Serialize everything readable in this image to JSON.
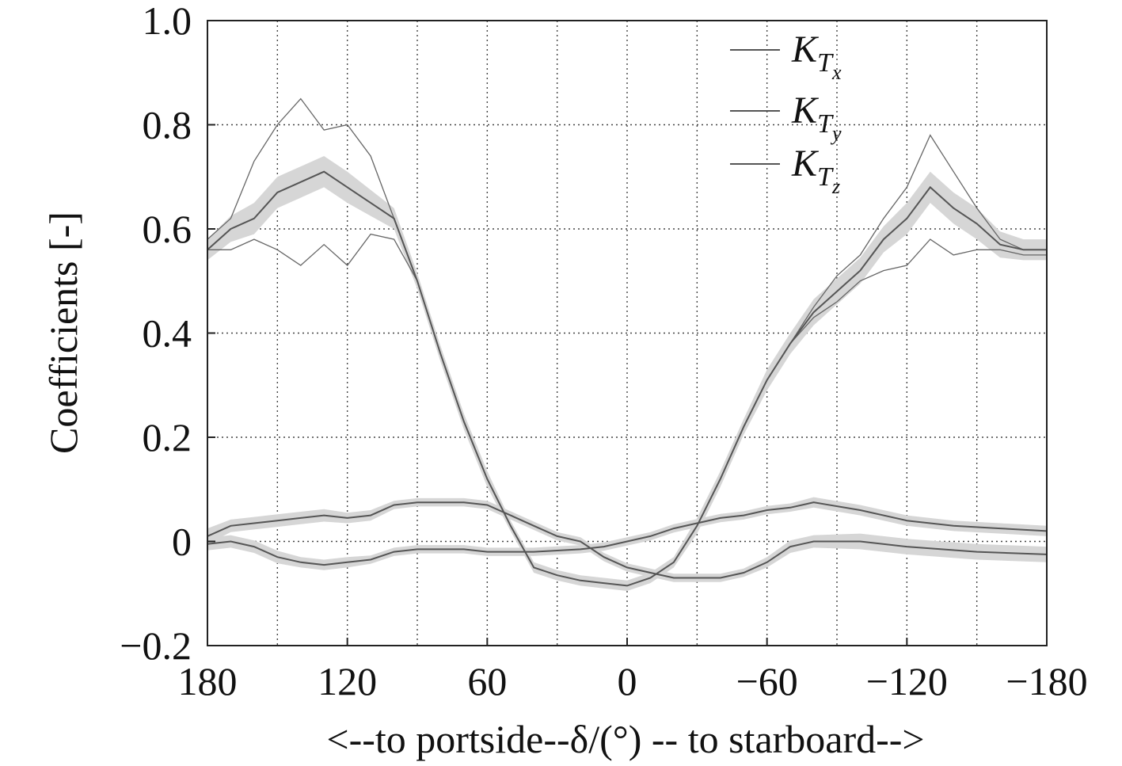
{
  "chart_data": {
    "type": "line",
    "title": "",
    "xlabel": "<--to portside--δ/(°) -- to starboard-->",
    "ylabel": "Coefficients [-]",
    "xlim": [
      180,
      -180
    ],
    "ylim": [
      -0.2,
      1.0
    ],
    "x_ticks": [
      180,
      120,
      60,
      0,
      -60,
      -120,
      -180
    ],
    "x_tick_labels": [
      "180",
      "120",
      "60",
      "0",
      "−60",
      "−120",
      "−180"
    ],
    "y_ticks": [
      -0.2,
      0,
      0.2,
      0.4,
      0.6,
      0.8,
      1.0
    ],
    "y_tick_labels": [
      "−0.2",
      "0",
      "0.2",
      "0.4",
      "0.6",
      "0.8",
      "1.0"
    ],
    "x_grid_step": 30,
    "grid": true,
    "legend_position": "top-right",
    "legend": [
      {
        "base": "K",
        "sub": "T",
        "subsub": "x"
      },
      {
        "base": "K",
        "sub": "T",
        "subsub": "y"
      },
      {
        "base": "K",
        "sub": "T",
        "subsub": "z"
      }
    ],
    "band_color": "#d6d6d6",
    "line_color": "#555555",
    "x": [
      180,
      170,
      160,
      150,
      140,
      130,
      120,
      110,
      100,
      90,
      80,
      70,
      60,
      50,
      40,
      30,
      20,
      10,
      0,
      -10,
      -20,
      -30,
      -40,
      -50,
      -60,
      -70,
      -80,
      -90,
      -100,
      -110,
      -120,
      -130,
      -140,
      -150,
      -160,
      -170,
      -180
    ],
    "series": [
      {
        "name": "K_Tx",
        "mean": [
          0.56,
          0.6,
          0.62,
          0.67,
          0.69,
          0.71,
          0.68,
          0.65,
          0.62,
          0.5,
          0.36,
          0.23,
          0.12,
          0.03,
          -0.05,
          -0.065,
          -0.075,
          -0.08,
          -0.085,
          -0.07,
          -0.04,
          0.03,
          0.12,
          0.22,
          0.31,
          0.38,
          0.44,
          0.48,
          0.52,
          0.58,
          0.62,
          0.68,
          0.64,
          0.61,
          0.57,
          0.56,
          0.56
        ],
        "band": [
          0.02,
          0.025,
          0.03,
          0.03,
          0.03,
          0.03,
          0.03,
          0.025,
          0.02,
          0.015,
          0.015,
          0.015,
          0.015,
          0.01,
          0.01,
          0.01,
          0.01,
          0.01,
          0.01,
          0.01,
          0.01,
          0.015,
          0.015,
          0.015,
          0.02,
          0.02,
          0.025,
          0.025,
          0.025,
          0.025,
          0.03,
          0.03,
          0.03,
          0.03,
          0.025,
          0.02,
          0.02
        ],
        "upper": [
          0.58,
          0.62,
          0.73,
          0.8,
          0.85,
          0.79,
          0.8,
          0.74,
          0.62,
          0.5,
          0.36,
          0.23,
          0.12,
          0.03,
          -0.05,
          -0.065,
          -0.075,
          -0.08,
          -0.085,
          -0.07,
          -0.04,
          0.03,
          0.12,
          0.22,
          0.31,
          0.38,
          0.45,
          0.51,
          0.55,
          0.62,
          0.68,
          0.78,
          0.71,
          0.64,
          0.58,
          0.56,
          0.56
        ],
        "lower": [
          0.56,
          0.56,
          0.58,
          0.56,
          0.53,
          0.57,
          0.53,
          0.59,
          0.58,
          0.5,
          0.36,
          0.23,
          0.12,
          0.03,
          -0.05,
          -0.065,
          -0.075,
          -0.08,
          -0.085,
          -0.07,
          -0.04,
          0.03,
          0.12,
          0.22,
          0.31,
          0.38,
          0.43,
          0.46,
          0.5,
          0.52,
          0.53,
          0.58,
          0.55,
          0.56,
          0.56,
          0.55,
          0.55
        ]
      },
      {
        "name": "K_Ty",
        "mean": [
          0.01,
          0.03,
          0.035,
          0.04,
          0.045,
          0.05,
          0.045,
          0.05,
          0.07,
          0.075,
          0.075,
          0.075,
          0.07,
          0.05,
          0.03,
          0.01,
          0.0,
          -0.03,
          -0.05,
          -0.06,
          -0.07,
          -0.07,
          -0.07,
          -0.06,
          -0.04,
          -0.01,
          0.0,
          0.0,
          -0.01,
          -0.02,
          -0.025
        ],
        "band": [
          0.015,
          0.012,
          0.012,
          0.012,
          0.012,
          0.012,
          0.01,
          0.01,
          0.008,
          0.008,
          0.008,
          0.008,
          0.008,
          0.008,
          0.008,
          0.008,
          0.008,
          0.008,
          0.008,
          0.008,
          0.008,
          0.008,
          0.008,
          0.008,
          0.01,
          0.012,
          0.012,
          0.015,
          0.015,
          0.015,
          0.015
        ],
        "x": [
          180,
          170,
          160,
          150,
          140,
          130,
          120,
          110,
          100,
          90,
          80,
          70,
          60,
          50,
          40,
          30,
          20,
          10,
          0,
          -10,
          -20,
          -30,
          -40,
          -50,
          -60,
          -70,
          -80,
          -100,
          -120,
          -150,
          -180
        ]
      },
      {
        "name": "K_Tz",
        "mean": [
          -0.005,
          0.0,
          -0.01,
          -0.03,
          -0.04,
          -0.045,
          -0.04,
          -0.035,
          -0.02,
          -0.015,
          -0.015,
          -0.015,
          -0.02,
          -0.02,
          -0.015,
          -0.01,
          0.0,
          0.01,
          0.025,
          0.035,
          0.045,
          0.05,
          0.06,
          0.065,
          0.075,
          0.06,
          0.04,
          0.03,
          0.025,
          0.02
        ],
        "band": [
          0.012,
          0.012,
          0.012,
          0.012,
          0.01,
          0.01,
          0.01,
          0.008,
          0.008,
          0.008,
          0.008,
          0.008,
          0.008,
          0.008,
          0.008,
          0.008,
          0.008,
          0.008,
          0.008,
          0.008,
          0.008,
          0.008,
          0.008,
          0.008,
          0.01,
          0.01,
          0.01,
          0.01,
          0.01,
          0.01
        ],
        "x": [
          180,
          170,
          160,
          150,
          140,
          130,
          120,
          110,
          100,
          90,
          80,
          70,
          60,
          40,
          20,
          10,
          0,
          -10,
          -20,
          -30,
          -40,
          -50,
          -60,
          -70,
          -80,
          -100,
          -120,
          -140,
          -160,
          -180
        ]
      }
    ]
  }
}
